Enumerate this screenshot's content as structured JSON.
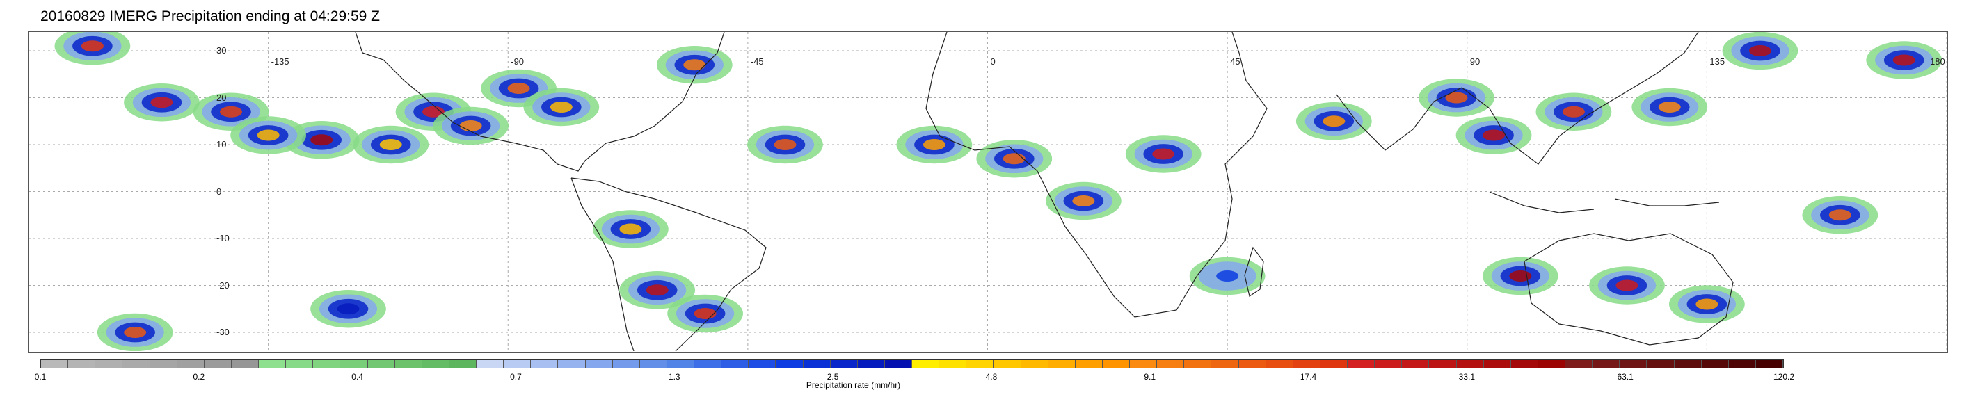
{
  "title": "20160829 IMERG Precipitation ending at 04:29:59 Z",
  "colorbar": {
    "title": "Precipitation rate (mm/hr)",
    "labels": [
      "0.1",
      "0.2",
      "0.4",
      "0.7",
      "1.3",
      "2.5",
      "4.8",
      "9.1",
      "17.4",
      "33.1",
      "63.1",
      "120.2"
    ],
    "colors": [
      "#b9b9b9",
      "#b4b4b4",
      "#afafaf",
      "#aaaaaa",
      "#a5a5a5",
      "#a0a0a0",
      "#9b9b9b",
      "#969696",
      "#8ee08e",
      "#87da87",
      "#80d480",
      "#79ce79",
      "#72c872",
      "#6bc26b",
      "#64bc64",
      "#5db65d",
      "#c9d7f5",
      "#b8cbf3",
      "#a7bff1",
      "#96b3ef",
      "#85a7ed",
      "#749beb",
      "#638fe9",
      "#5283e7",
      "#3f6fe8",
      "#2e5ee6",
      "#1d4de4",
      "#0c3ce2",
      "#0a31d6",
      "#0826c9",
      "#061bbd",
      "#0410b0",
      "#ffee00",
      "#ffe100",
      "#ffd400",
      "#ffc700",
      "#ffba00",
      "#ffad00",
      "#ffa000",
      "#ff9300",
      "#fb8a10",
      "#f77e10",
      "#f37210",
      "#ef6610",
      "#eb5a10",
      "#e74e10",
      "#e34210",
      "#df3610",
      "#d42020",
      "#cc1c1c",
      "#c41818",
      "#bc1414",
      "#b41010",
      "#ac0c0c",
      "#a40808",
      "#9c0404",
      "#7e1c1c",
      "#761818",
      "#6e1414",
      "#661010",
      "#5e0c0c",
      "#560808",
      "#4e0404",
      "#460000"
    ]
  },
  "map": {
    "lat_labels": [
      "30",
      "20",
      "10",
      "0",
      "-10",
      "-20",
      "-30"
    ],
    "lon_labels": [
      "-135",
      "-90",
      "-45",
      "0",
      "45",
      "90",
      "135",
      "180"
    ],
    "lat_values": [
      30,
      20,
      10,
      0,
      -10,
      -20,
      -30
    ],
    "lon_values": [
      -135,
      -90,
      -45,
      0,
      45,
      90,
      135,
      180
    ],
    "extent": {
      "lon_min": -180,
      "lon_max": 180,
      "lat_min": -34,
      "lat_max": 34
    },
    "rain_cells": [
      {
        "lon": -168,
        "lat": 31,
        "mm": 20
      },
      {
        "lon": -155,
        "lat": 19,
        "mm": 25
      },
      {
        "lon": -142,
        "lat": 17,
        "mm": 18
      },
      {
        "lon": -125,
        "lat": 11,
        "mm": 40
      },
      {
        "lon": -135,
        "lat": 12,
        "mm": 6
      },
      {
        "lon": -112,
        "lat": 10,
        "mm": 5
      },
      {
        "lon": -104,
        "lat": 17,
        "mm": 22
      },
      {
        "lon": -97,
        "lat": 14,
        "mm": 9
      },
      {
        "lon": -88,
        "lat": 22,
        "mm": 12
      },
      {
        "lon": -80,
        "lat": 18,
        "mm": 6
      },
      {
        "lon": -55,
        "lat": 27,
        "mm": 10
      },
      {
        "lon": -38,
        "lat": 10,
        "mm": 14
      },
      {
        "lon": -10,
        "lat": 10,
        "mm": 7
      },
      {
        "lon": 5,
        "lat": 7,
        "mm": 12
      },
      {
        "lon": 18,
        "lat": -2,
        "mm": 9
      },
      {
        "lon": 33,
        "lat": 8,
        "mm": 25
      },
      {
        "lon": 65,
        "lat": 15,
        "mm": 8
      },
      {
        "lon": 88,
        "lat": 20,
        "mm": 14
      },
      {
        "lon": 95,
        "lat": 12,
        "mm": 30
      },
      {
        "lon": 110,
        "lat": 17,
        "mm": 18
      },
      {
        "lon": 128,
        "lat": 18,
        "mm": 9
      },
      {
        "lon": 145,
        "lat": 30,
        "mm": 35
      },
      {
        "lon": 172,
        "lat": 28,
        "mm": 30
      },
      {
        "lon": 160,
        "lat": -5,
        "mm": 12
      },
      {
        "lon": 120,
        "lat": -20,
        "mm": 25
      },
      {
        "lon": 100,
        "lat": -18,
        "mm": 40
      },
      {
        "lon": 135,
        "lat": -24,
        "mm": 7
      },
      {
        "lon": -62,
        "lat": -21,
        "mm": 30
      },
      {
        "lon": -53,
        "lat": -26,
        "mm": 20
      },
      {
        "lon": -67,
        "lat": -8,
        "mm": 6
      },
      {
        "lon": -160,
        "lat": -30,
        "mm": 14
      },
      {
        "lon": -120,
        "lat": -25,
        "mm": 3
      },
      {
        "lon": 45,
        "lat": -18,
        "mm": 2
      }
    ]
  }
}
